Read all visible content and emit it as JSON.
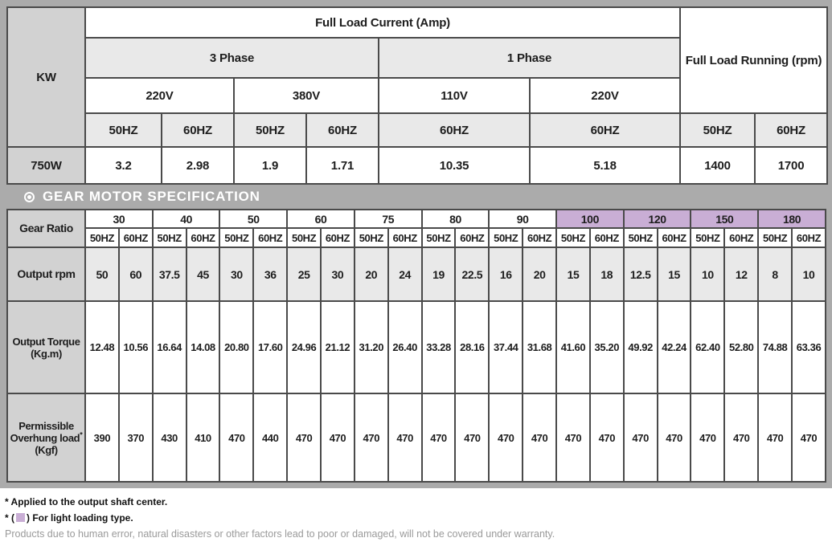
{
  "full_load_table": {
    "kw_label": "KW",
    "current_title": "Full Load Current (Amp)",
    "running_title": "Full Load Running (rpm)",
    "phase3_label": "3 Phase",
    "phase1_label": "1 Phase",
    "voltages": [
      "220V",
      "380V",
      "110V",
      "220V"
    ],
    "freqs": [
      "50HZ",
      "60HZ",
      "50HZ",
      "60HZ",
      "60HZ",
      "60HZ",
      "50HZ",
      "60HZ"
    ],
    "data_row": {
      "kw": "750W",
      "currents": [
        "3.2",
        "2.98",
        "1.9",
        "1.71",
        "10.35",
        "5.18"
      ],
      "running": [
        "1400",
        "1700"
      ]
    }
  },
  "section_header": {
    "title": "GEAR MOTOR SPECIFICATION",
    "icon": "bullseye-icon"
  },
  "gear_table": {
    "ratio_label": "Gear Ratio",
    "ratios": [
      {
        "value": "30",
        "light": false
      },
      {
        "value": "40",
        "light": false
      },
      {
        "value": "50",
        "light": false
      },
      {
        "value": "60",
        "light": false
      },
      {
        "value": "75",
        "light": false
      },
      {
        "value": "80",
        "light": false
      },
      {
        "value": "90",
        "light": false
      },
      {
        "value": "100",
        "light": true
      },
      {
        "value": "120",
        "light": true
      },
      {
        "value": "150",
        "light": true
      },
      {
        "value": "180",
        "light": true
      }
    ],
    "hz_row": [
      "50HZ",
      "60HZ",
      "50HZ",
      "60HZ",
      "50HZ",
      "60HZ",
      "50HZ",
      "60HZ",
      "50HZ",
      "60HZ",
      "50HZ",
      "60HZ",
      "50HZ",
      "60HZ",
      "50HZ",
      "60HZ",
      "50HZ",
      "60HZ",
      "50HZ",
      "60HZ",
      "50HZ",
      "60HZ"
    ],
    "output_rpm": {
      "label": "Output rpm",
      "values": [
        "50",
        "60",
        "37.5",
        "45",
        "30",
        "36",
        "25",
        "30",
        "20",
        "24",
        "19",
        "22.5",
        "16",
        "20",
        "15",
        "18",
        "12.5",
        "15",
        "10",
        "12",
        "8",
        "10"
      ]
    },
    "output_torque": {
      "label_line1": "Output Torque",
      "label_line2": "(Kg.m)",
      "values": [
        "12.48",
        "10.56",
        "16.64",
        "14.08",
        "20.80",
        "17.60",
        "24.96",
        "21.12",
        "31.20",
        "26.40",
        "33.28",
        "28.16",
        "37.44",
        "31.68",
        "41.60",
        "35.20",
        "49.92",
        "42.24",
        "62.40",
        "52.80",
        "74.88",
        "63.36"
      ]
    },
    "overhung_load": {
      "label_line1": "Permissible",
      "label_line2": "Overhung load",
      "label_sup": "*",
      "label_line3": "(Kgf)",
      "values": [
        "390",
        "370",
        "430",
        "410",
        "470",
        "440",
        "470",
        "470",
        "470",
        "470",
        "470",
        "470",
        "470",
        "470",
        "470",
        "470",
        "470",
        "470",
        "470",
        "470",
        "470",
        "470"
      ]
    }
  },
  "footnotes": {
    "shaft": "* Applied to the output shaft center.",
    "light_prefix": "* (",
    "light_suffix": ") For light loading type.",
    "warranty": "Products due to human error, natural disasters or other factors lead to poor or damaged, will not be covered under warranty."
  },
  "colors": {
    "frame": "#ababab",
    "labelbg": "#d2d2d2",
    "shadebg": "#e9e9e9",
    "lightbg": "#c9aed5",
    "borderc": "#4a4a4a",
    "deco": "#f6dcc3",
    "warrantyc": "#9a9a9a"
  }
}
